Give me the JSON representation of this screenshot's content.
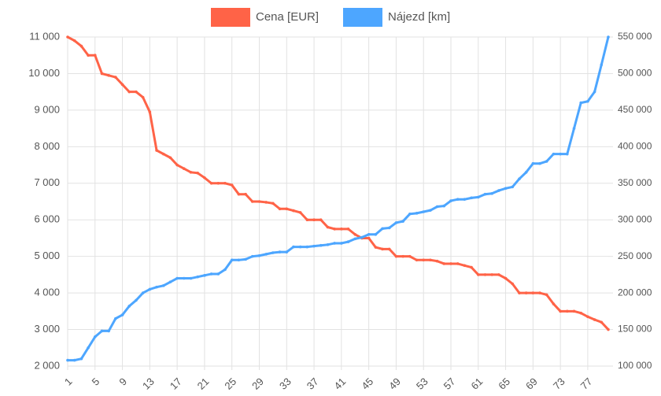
{
  "chart_data": {
    "type": "line",
    "categories": [
      "1",
      null,
      null,
      null,
      "5",
      null,
      null,
      null,
      "9",
      null,
      null,
      null,
      "13",
      null,
      null,
      null,
      "17",
      null,
      null,
      null,
      "21",
      null,
      null,
      null,
      "25",
      null,
      null,
      null,
      "29",
      null,
      null,
      null,
      "33",
      null,
      null,
      null,
      "37",
      null,
      null,
      null,
      "41",
      null,
      null,
      null,
      "45",
      null,
      null,
      null,
      "49",
      null,
      null,
      null,
      "53",
      null,
      null,
      null,
      "57",
      null,
      null,
      null,
      "61",
      null,
      null,
      null,
      "65",
      null,
      null,
      null,
      "69",
      null,
      null,
      null,
      "73",
      null,
      null,
      null,
      "77",
      null,
      null,
      null
    ],
    "series": [
      {
        "name": "Cena [EUR]",
        "color": "#ff6347",
        "axis": "y",
        "values": [
          11000,
          10900,
          10750,
          10500,
          10500,
          10000,
          9950,
          9900,
          9700,
          9500,
          9500,
          9350,
          8950,
          7900,
          7800,
          7700,
          7500,
          7400,
          7300,
          7280,
          7150,
          7000,
          7000,
          7000,
          6950,
          6700,
          6700,
          6500,
          6500,
          6480,
          6450,
          6300,
          6300,
          6250,
          6200,
          6000,
          6000,
          6000,
          5800,
          5750,
          5750,
          5750,
          5600,
          5500,
          5500,
          5250,
          5200,
          5200,
          5000,
          5000,
          5000,
          4900,
          4900,
          4900,
          4870,
          4800,
          4800,
          4800,
          4750,
          4700,
          4500,
          4500,
          4500,
          4500,
          4400,
          4250,
          4000,
          4000,
          4000,
          4000,
          3950,
          3700,
          3500,
          3500,
          3500,
          3450,
          3350,
          3270,
          3200,
          3000
        ]
      },
      {
        "name": "Nájezd [km]",
        "color": "#4da6ff",
        "axis": "y2",
        "values": [
          108000,
          108000,
          110000,
          125000,
          140000,
          148000,
          148000,
          165000,
          170000,
          182000,
          190000,
          200000,
          205000,
          208000,
          210000,
          215000,
          220000,
          220000,
          220000,
          222000,
          224000,
          226000,
          226000,
          232000,
          245000,
          245000,
          246000,
          250000,
          251000,
          253000,
          255000,
          256000,
          256000,
          263000,
          263000,
          263000,
          264000,
          265000,
          266000,
          268000,
          268000,
          270000,
          274000,
          276000,
          280000,
          280000,
          288000,
          289000,
          296000,
          298000,
          308000,
          309000,
          311000,
          313000,
          318000,
          319000,
          326000,
          328000,
          328000,
          330000,
          331000,
          335000,
          336000,
          340000,
          343000,
          345000,
          356000,
          365000,
          377000,
          377000,
          380000,
          390000,
          390000,
          390000,
          425000,
          460000,
          462000,
          475000,
          512000,
          550000
        ]
      }
    ],
    "ylim": [
      2000,
      11000
    ],
    "yticks": [
      {
        "value": 2000,
        "label": "2 000"
      },
      {
        "value": 3000,
        "label": "3 000"
      },
      {
        "value": 4000,
        "label": "4 000"
      },
      {
        "value": 5000,
        "label": "5 000"
      },
      {
        "value": 6000,
        "label": "6 000"
      },
      {
        "value": 7000,
        "label": "7 000"
      },
      {
        "value": 8000,
        "label": "8 000"
      },
      {
        "value": 9000,
        "label": "9 000"
      },
      {
        "value": 10000,
        "label": "10 000"
      },
      {
        "value": 11000,
        "label": "11 000"
      }
    ],
    "y2lim": [
      100000,
      550000
    ],
    "y2ticks": [
      {
        "value": 100000,
        "label": "100 000"
      },
      {
        "value": 150000,
        "label": "150 000"
      },
      {
        "value": 200000,
        "label": "200 000"
      },
      {
        "value": 250000,
        "label": "250 000"
      },
      {
        "value": 300000,
        "label": "300 000"
      },
      {
        "value": 350000,
        "label": "350 000"
      },
      {
        "value": 400000,
        "label": "400 000"
      },
      {
        "value": 450000,
        "label": "450 000"
      },
      {
        "value": 500000,
        "label": "500 000"
      },
      {
        "value": 550000,
        "label": "550 000"
      }
    ],
    "grid": true,
    "legend": "top"
  }
}
